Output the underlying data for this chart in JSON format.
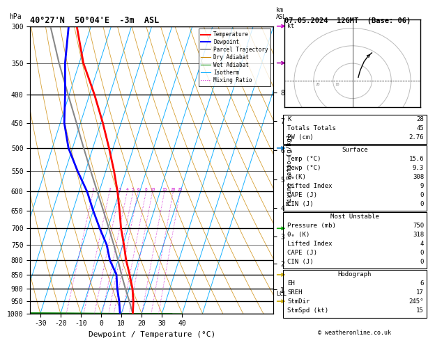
{
  "title_sounding": "40°27'N  50°04'E  -3m  ASL",
  "title_date": "07.05.2024  12GMT  (Base: 06)",
  "xlabel": "Dewpoint / Temperature (°C)",
  "pressure_levels": [
    300,
    350,
    400,
    450,
    500,
    550,
    600,
    650,
    700,
    750,
    800,
    850,
    900,
    950,
    1000
  ],
  "pressure_major": [
    300,
    400,
    500,
    600,
    700,
    800,
    850,
    900,
    950,
    1000
  ],
  "xlim_T": [
    -35,
    40
  ],
  "skew_factor": 45.0,
  "dry_adiabat_color": "#cc8800",
  "wet_adiabat_color": "#008800",
  "isotherm_color": "#00aaff",
  "mixing_ratio_color": "#cc00cc",
  "temp_color": "#ff0000",
  "dewpoint_color": "#0000ff",
  "parcel_color": "#888888",
  "temperature_profile": {
    "pressure": [
      1000,
      950,
      900,
      850,
      800,
      750,
      700,
      650,
      600,
      550,
      500,
      450,
      400,
      350,
      300
    ],
    "temp": [
      15.6,
      14.0,
      11.5,
      8.0,
      4.0,
      0.5,
      -3.5,
      -7.0,
      -11.0,
      -16.0,
      -22.0,
      -29.0,
      -37.5,
      -48.0,
      -57.0
    ]
  },
  "dewpoint_profile": {
    "pressure": [
      1000,
      950,
      900,
      850,
      800,
      750,
      700,
      650,
      600,
      550,
      500,
      450,
      400,
      350,
      300
    ],
    "temp": [
      9.3,
      7.0,
      4.0,
      1.5,
      -4.0,
      -8.0,
      -14.0,
      -20.0,
      -26.0,
      -34.0,
      -42.0,
      -48.0,
      -52.0,
      -57.0,
      -61.0
    ]
  },
  "parcel_profile": {
    "pressure": [
      1000,
      950,
      900,
      850,
      800,
      750,
      700,
      650,
      600,
      550,
      500,
      450,
      400,
      350,
      300
    ],
    "temp": [
      15.6,
      12.0,
      8.0,
      4.0,
      0.0,
      -4.5,
      -9.5,
      -15.0,
      -21.0,
      -27.5,
      -34.5,
      -42.0,
      -50.5,
      -60.0,
      -70.0
    ]
  },
  "km_ticks": [
    1,
    2,
    3,
    4,
    5,
    6,
    7,
    8
  ],
  "km_pressures": [
    905,
    812,
    724,
    643,
    570,
    504,
    447,
    396
  ],
  "lcl_pressure": 922,
  "mixing_ratio_lines": [
    1,
    2,
    3,
    4,
    5,
    6,
    8,
    10,
    15,
    20,
    25
  ],
  "info_K": "28",
  "info_TT": "45",
  "info_PW": "2.76",
  "info_surf_temp": "15.6",
  "info_surf_dewp": "9.3",
  "info_surf_theta_e": "308",
  "info_surf_li": "9",
  "info_surf_cape": "0",
  "info_surf_cin": "0",
  "info_mu_pres": "750",
  "info_mu_theta_e": "318",
  "info_mu_li": "4",
  "info_mu_cape": "0",
  "info_mu_cin": "0",
  "info_hodo_eh": "6",
  "info_hodo_sreh": "17",
  "info_hodo_stmdir": "245°",
  "info_hodo_stmspd": "15",
  "wind_barbs": [
    {
      "pressure": 300,
      "color": "#cc00cc",
      "flag": true
    },
    {
      "pressure": 350,
      "color": "#aa00aa"
    },
    {
      "pressure": 500,
      "color": "#0077cc"
    },
    {
      "pressure": 700,
      "color": "#00aa00"
    },
    {
      "pressure": 850,
      "color": "#ccaa00"
    },
    {
      "pressure": 950,
      "color": "#ccaa00"
    }
  ]
}
